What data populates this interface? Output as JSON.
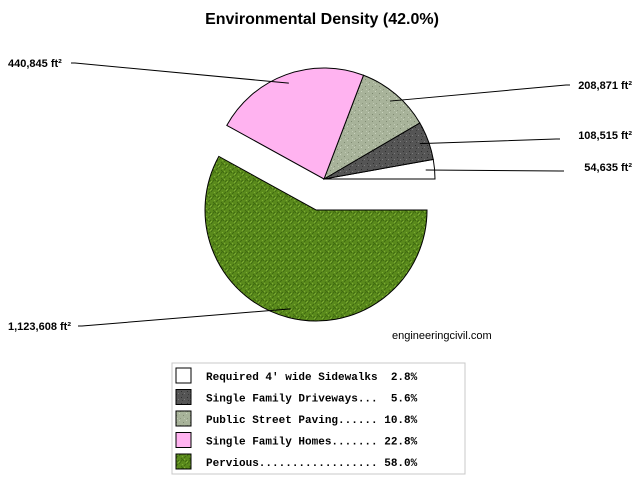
{
  "chart_data": {
    "type": "pie",
    "title": "Environmental Density (42.0%)",
    "watermark": "engineeringcivil.com",
    "slices": [
      {
        "label": "Required 4' wide Sidewalks",
        "legend_text": "Required 4' wide Sidewalks  2.8%",
        "value": 54635,
        "value_label": "54,635 ft²",
        "percent": 2.8,
        "fill": "#ffffff",
        "texture": "none",
        "exploded": false
      },
      {
        "label": "Single Family Driveways",
        "legend_text": "Single Family Driveways...  5.6%",
        "value": 108515,
        "value_label": "108,515 ft²",
        "percent": 5.6,
        "fill": "#555555",
        "texture": "asphalt",
        "exploded": false
      },
      {
        "label": "Public Street Paving",
        "legend_text": "Public Street Paving...... 10.8%",
        "value": 208871,
        "value_label": "208,871 ft²",
        "percent": 10.8,
        "fill": "#a8b39a",
        "texture": "concrete",
        "exploded": false
      },
      {
        "label": "Single Family Homes",
        "legend_text": "Single Family Homes....... 22.8%",
        "value": 440845,
        "value_label": "440,845 ft²",
        "percent": 22.8,
        "fill": "#ffb3f0",
        "texture": "none",
        "exploded": false
      },
      {
        "label": "Pervious",
        "legend_text": "Pervious.................. 58.0%",
        "value": 1123608,
        "value_label": "1,123,608 ft²",
        "percent": 58.0,
        "fill": "#5a8a1c",
        "texture": "grass",
        "exploded": true
      }
    ],
    "legend_position": "bottom-center"
  }
}
